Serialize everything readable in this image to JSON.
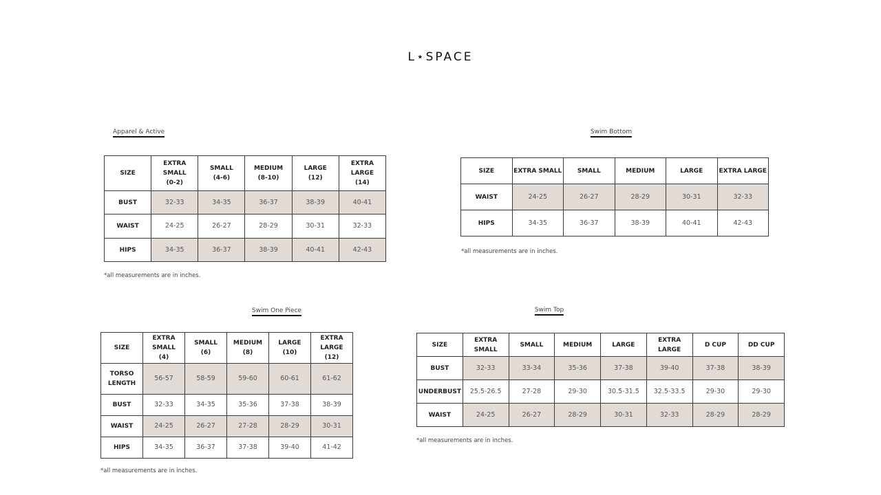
{
  "brand": {
    "logo": "L⋆SPACE"
  },
  "colors": {
    "shaded_cell": "#e2dad5",
    "border": "#3a3a3a"
  },
  "charts": [
    {
      "id": "apparel",
      "title": "Apparel & Active",
      "note": "*all measurements are in inches.",
      "headers": [
        "SIZE",
        "EXTRA SMALL\n(0-2)",
        "SMALL\n(4-6)",
        "MEDIUM\n(8-10)",
        "LARGE\n(12)",
        "EXTRA LARGE\n(14)"
      ],
      "rows": [
        {
          "label": "BUST",
          "shaded": true,
          "values": [
            "32-33",
            "34-35",
            "36-37",
            "38-39",
            "40-41"
          ]
        },
        {
          "label": "WAIST",
          "shaded": false,
          "values": [
            "24-25",
            "26-27",
            "28-29",
            "30-31",
            "32-33"
          ]
        },
        {
          "label": "HIPS",
          "shaded": true,
          "values": [
            "34-35",
            "36-37",
            "38-39",
            "40-41",
            "42-43"
          ]
        }
      ]
    },
    {
      "id": "swim-bottom",
      "title": "Swim Bottom",
      "note": "*all measurements are in inches.",
      "headers": [
        "SIZE",
        "EXTRA SMALL",
        "SMALL",
        "MEDIUM",
        "LARGE",
        "EXTRA LARGE"
      ],
      "rows": [
        {
          "label": "WAIST",
          "shaded": true,
          "values": [
            "24-25",
            "26-27",
            "28-29",
            "30-31",
            "32-33"
          ]
        },
        {
          "label": "HIPS",
          "shaded": false,
          "values": [
            "34-35",
            "36-37",
            "38-39",
            "40-41",
            "42-43"
          ]
        }
      ]
    },
    {
      "id": "swim-one-piece",
      "title": "Swim One Piece",
      "note": "*all measurements are in inches.",
      "headers": [
        "SIZE",
        "EXTRA SMALL\n(4)",
        "SMALL\n(6)",
        "MEDIUM\n(8)",
        "LARGE\n(10)",
        "EXTRA LARGE\n(12)"
      ],
      "rows": [
        {
          "label": "TORSO\nLENGTH",
          "shaded": true,
          "values": [
            "56-57",
            "58-59",
            "59-60",
            "60-61",
            "61-62"
          ]
        },
        {
          "label": "BUST",
          "shaded": false,
          "values": [
            "32-33",
            "34-35",
            "35-36",
            "37-38",
            "38-39"
          ]
        },
        {
          "label": "WAIST",
          "shaded": true,
          "values": [
            "24-25",
            "26-27",
            "27-28",
            "28-29",
            "30-31"
          ]
        },
        {
          "label": "HIPS",
          "shaded": false,
          "values": [
            "34-35",
            "36-37",
            "37-38",
            "39-40",
            "41-42"
          ]
        }
      ]
    },
    {
      "id": "swim-top",
      "title": "Swim Top",
      "note": "*all measurements are in inches.",
      "headers": [
        "SIZE",
        "EXTRA SMALL",
        "SMALL",
        "MEDIUM",
        "LARGE",
        "EXTRA LARGE",
        "D CUP",
        "DD CUP"
      ],
      "rows": [
        {
          "label": "BUST",
          "shaded": true,
          "values": [
            "32-33",
            "33-34",
            "35-36",
            "37-38",
            "39-40",
            "37-38",
            "38-39"
          ]
        },
        {
          "label": "UNDERBUST",
          "shaded": false,
          "values": [
            "25.5-26.5",
            "27-28",
            "29-30",
            "30.5-31.5",
            "32.5-33.5",
            "29-30",
            "29-30"
          ]
        },
        {
          "label": "WAIST",
          "shaded": true,
          "values": [
            "24-25",
            "26-27",
            "28-29",
            "30-31",
            "32-33",
            "28-29",
            "28-29"
          ]
        }
      ]
    }
  ]
}
